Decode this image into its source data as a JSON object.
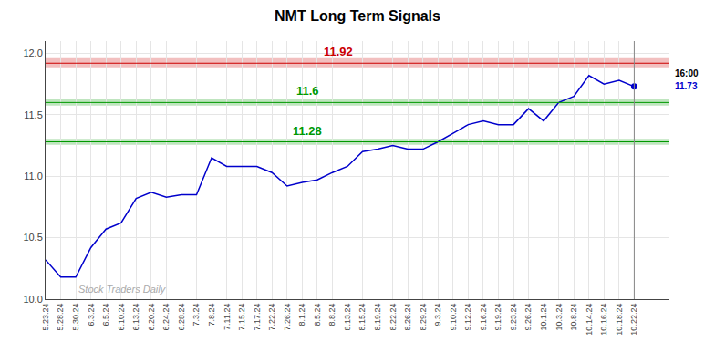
{
  "chart_data": {
    "type": "line",
    "title": "NMT Long Term Signals",
    "categories": [
      "5.23.24",
      "5.28.24",
      "5.30.24",
      "6.3.24",
      "6.5.24",
      "6.10.24",
      "6.13.24",
      "6.20.24",
      "6.24.24",
      "6.28.24",
      "7.3.24",
      "7.8.24",
      "7.11.24",
      "7.15.24",
      "7.17.24",
      "7.22.24",
      "7.26.24",
      "8.1.24",
      "8.5.24",
      "8.8.24",
      "8.13.24",
      "8.15.24",
      "8.19.24",
      "8.22.24",
      "8.26.24",
      "8.29.24",
      "9.3.24",
      "9.10.24",
      "9.12.24",
      "9.16.24",
      "9.19.24",
      "9.23.24",
      "9.26.24",
      "10.1.24",
      "10.3.24",
      "10.8.24",
      "10.14.24",
      "10.16.24",
      "10.18.24",
      "10.22.24"
    ],
    "values": [
      10.32,
      10.18,
      10.18,
      10.42,
      10.57,
      10.62,
      10.82,
      10.87,
      10.83,
      10.85,
      10.85,
      11.15,
      11.08,
      11.08,
      11.08,
      11.03,
      10.92,
      10.95,
      10.97,
      11.03,
      11.08,
      11.2,
      11.22,
      11.25,
      11.22,
      11.22,
      11.28,
      11.35,
      11.42,
      11.45,
      11.42,
      11.42,
      11.55,
      11.45,
      11.6,
      11.65,
      11.82,
      11.75,
      11.78,
      11.73
    ],
    "color": "#0000cc",
    "ylim": [
      10.0,
      12.1
    ],
    "yticks": [
      {
        "value": 10.0,
        "label": "10.0"
      },
      10.5,
      {
        "value": 11.0,
        "label": "11.0"
      },
      11.5,
      {
        "value": 12.0,
        "label": "12.0"
      }
    ],
    "grid": true,
    "reference_lines": [
      {
        "value": 11.92,
        "label": "11.92",
        "color": "#cc0000",
        "band": [
          11.88,
          11.96
        ]
      },
      {
        "value": 11.6,
        "label": "11.6",
        "color": "#009900",
        "band": [
          11.575,
          11.625
        ]
      },
      {
        "value": 11.28,
        "label": "11.28",
        "color": "#009900",
        "band": [
          11.255,
          11.305
        ]
      }
    ],
    "annotations": [
      {
        "text": "Stock Traders Daily"
      },
      {
        "text": "16:00"
      },
      {
        "text": "11.73",
        "value": 11.73
      }
    ]
  }
}
